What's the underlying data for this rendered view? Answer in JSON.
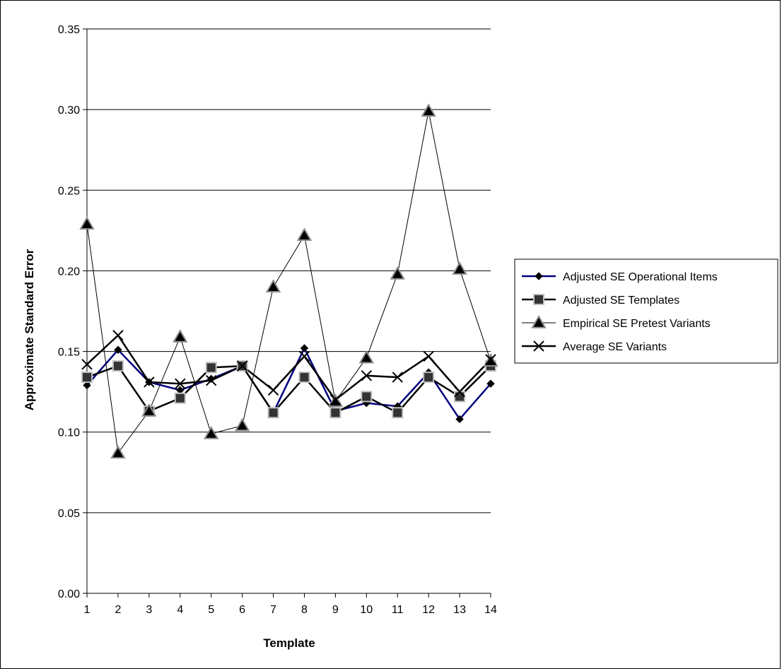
{
  "chart_data": {
    "type": "line",
    "title": "",
    "xlabel": "Template",
    "ylabel": "Approximate Standard Error",
    "x": [
      1,
      2,
      3,
      4,
      5,
      6,
      7,
      8,
      9,
      10,
      11,
      12,
      13,
      14
    ],
    "x_tick_labels": [
      "1",
      "2",
      "3",
      "4",
      "5",
      "6",
      "7",
      "8",
      "9",
      "10",
      "11",
      "12",
      "13",
      "14"
    ],
    "ylim": [
      0,
      0.35
    ],
    "y_ticks": [
      0.0,
      0.05,
      0.1,
      0.15,
      0.2,
      0.25,
      0.3,
      0.35
    ],
    "y_tick_labels": [
      "0.00",
      "0.05",
      "0.10",
      "0.15",
      "0.20",
      "0.25",
      "0.30",
      "0.35"
    ],
    "grid": "horizontal",
    "legend_position": "right",
    "series": [
      {
        "name": "Adjusted SE Operational Items",
        "color": "#000080",
        "marker": "diamond",
        "values": [
          0.129,
          0.151,
          0.131,
          0.126,
          0.133,
          0.141,
          0.112,
          0.152,
          0.113,
          0.118,
          0.116,
          0.137,
          0.108,
          0.13
        ]
      },
      {
        "name": "Adjusted SE Templates",
        "color": "#000000",
        "marker": "square",
        "values": [
          0.134,
          0.141,
          0.113,
          0.121,
          0.14,
          0.141,
          0.112,
          0.134,
          0.112,
          0.122,
          0.112,
          0.134,
          0.122,
          0.141
        ]
      },
      {
        "name": "Empirical SE Pretest Variants",
        "color": "#000000",
        "marker": "triangle",
        "values": [
          0.229,
          0.087,
          0.113,
          0.159,
          0.099,
          0.104,
          0.19,
          0.222,
          0.119,
          0.146,
          0.198,
          0.299,
          0.201,
          0.144
        ]
      },
      {
        "name": "Average SE Variants",
        "color": "#000000",
        "marker": "x",
        "values": [
          0.142,
          0.16,
          0.131,
          0.13,
          0.132,
          0.141,
          0.126,
          0.147,
          0.12,
          0.135,
          0.134,
          0.147,
          0.125,
          0.145
        ]
      }
    ]
  }
}
